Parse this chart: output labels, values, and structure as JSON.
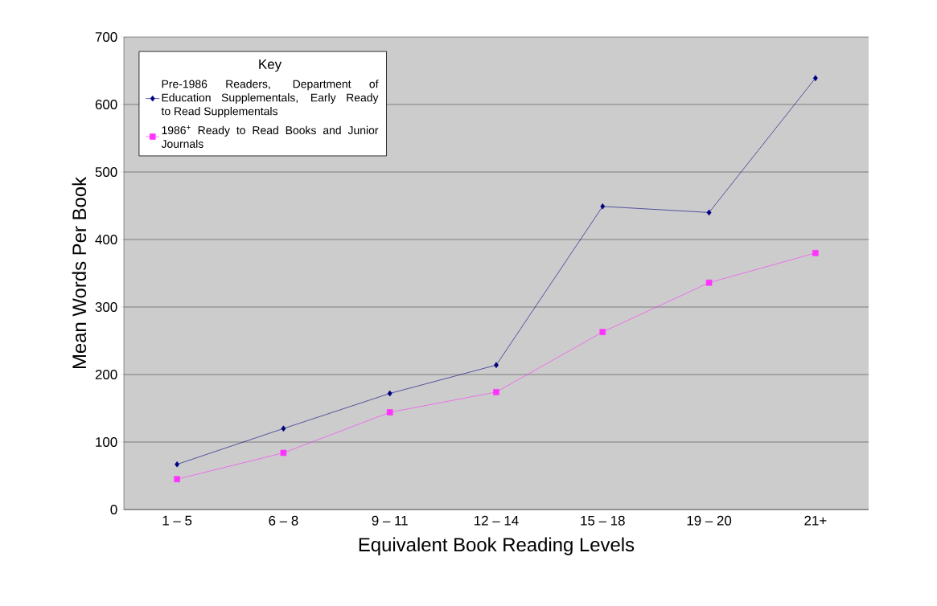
{
  "chart_data": {
    "type": "line",
    "xlabel": "Equivalent Book Reading Levels",
    "ylabel": "Mean Words Per Book",
    "legend_title": "Key",
    "categories": [
      "1 – 5",
      "6 – 8",
      "9 – 11",
      "12 – 14",
      "15 – 18",
      "19 – 20",
      "21+"
    ],
    "series": [
      {
        "name": "Pre-1986 Readers, Department of Education Supplementals, Early Ready to Read Supplementals",
        "color": "#000080",
        "marker": "diamond",
        "values": [
          67,
          120,
          172,
          214,
          449,
          440,
          639
        ]
      },
      {
        "name": "1986$^{+}$ Ready to Read Books and Junior Journals",
        "color": "#ff33ff",
        "marker": "square",
        "values": [
          45,
          84,
          144,
          174,
          263,
          336,
          380
        ]
      }
    ],
    "ylim": [
      0,
      700
    ],
    "yticks": [
      0,
      100,
      200,
      300,
      400,
      500,
      600,
      700
    ],
    "grid": "y",
    "legend": "top left",
    "line_style": "solid"
  }
}
